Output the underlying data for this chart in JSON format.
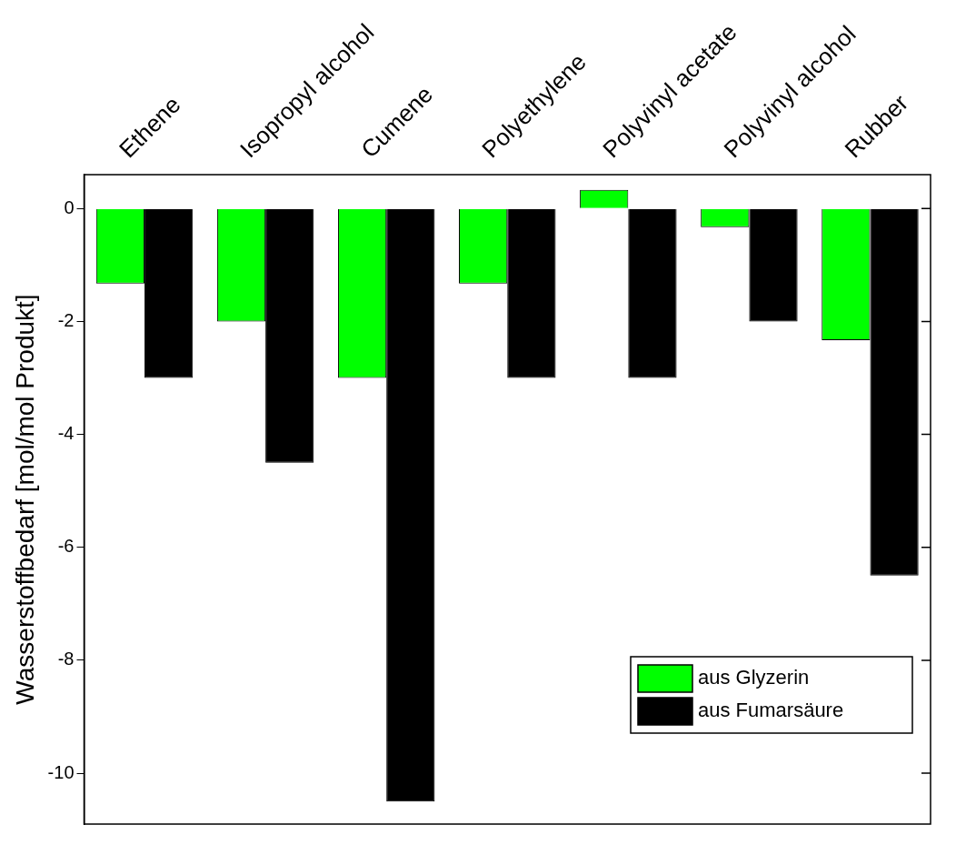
{
  "chart_data": {
    "type": "bar",
    "ylabel": "Wasserstoffbedarf [mol/mol Produkt]",
    "categories": [
      "Ethene",
      "Isopropyl alcohol",
      "Cumene",
      "Polyethylene",
      "Polyvinyl acetate",
      "Polyvinyl alcohol",
      "Rubber"
    ],
    "series": [
      {
        "name": "aus Glyzerin",
        "color": "#00ff00",
        "values": [
          -1.33,
          -2,
          -3,
          -1.33,
          0.33,
          -0.33,
          -2.33
        ]
      },
      {
        "name": "aus Fumarsäure",
        "color": "#000000",
        "values": [
          -3,
          -4.5,
          -10.5,
          -3,
          -3,
          -2,
          -6.5
        ]
      }
    ],
    "ylim": [
      -10.9,
      0.6
    ],
    "yticks": [
      -10,
      -8,
      -6,
      -4,
      -2,
      0
    ],
    "grid": false,
    "legend": "bottom right"
  }
}
